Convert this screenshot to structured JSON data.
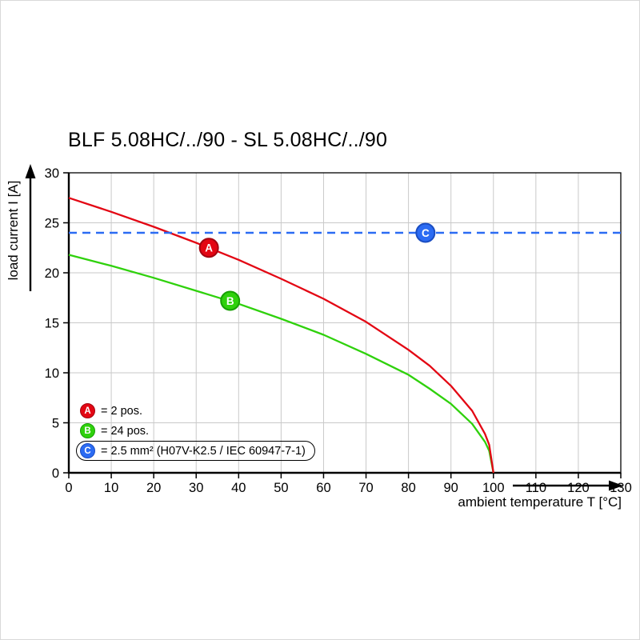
{
  "chart_data": {
    "type": "line",
    "title": "BLF 5.08HC/../90 - SL 5.08HC/../90",
    "xlabel": "ambient temperature T [°C]",
    "ylabel": "load current I [A]",
    "xlim": [
      0,
      130
    ],
    "ylim": [
      0,
      30
    ],
    "x_ticks": [
      0,
      10,
      20,
      30,
      40,
      50,
      60,
      70,
      80,
      90,
      100,
      110,
      120,
      130
    ],
    "y_ticks": [
      0,
      5,
      10,
      15,
      20,
      25,
      30
    ],
    "grid": true,
    "legend_position": "lower-left-inside",
    "series": [
      {
        "name": "B = 24 pos.",
        "color": "#2fd10c",
        "ring": "#17a004",
        "style": "solid",
        "points": [
          [
            0,
            21.8
          ],
          [
            10,
            20.7
          ],
          [
            20,
            19.5
          ],
          [
            30,
            18.2
          ],
          [
            40,
            16.9
          ],
          [
            50,
            15.4
          ],
          [
            60,
            13.8
          ],
          [
            70,
            11.9
          ],
          [
            80,
            9.8
          ],
          [
            85,
            8.4
          ],
          [
            90,
            6.9
          ],
          [
            95,
            4.9
          ],
          [
            98,
            3.1
          ],
          [
            99,
            2.2
          ],
          [
            100,
            0
          ]
        ]
      },
      {
        "name": "A = 2 pos.",
        "color": "#e30613",
        "ring": "#a30410",
        "style": "solid",
        "points": [
          [
            0,
            27.5
          ],
          [
            10,
            26.1
          ],
          [
            20,
            24.6
          ],
          [
            30,
            23.0
          ],
          [
            40,
            21.3
          ],
          [
            50,
            19.4
          ],
          [
            60,
            17.4
          ],
          [
            70,
            15.1
          ],
          [
            80,
            12.3
          ],
          [
            85,
            10.7
          ],
          [
            90,
            8.7
          ],
          [
            95,
            6.2
          ],
          [
            98,
            3.9
          ],
          [
            99,
            2.8
          ],
          [
            100,
            0
          ]
        ]
      },
      {
        "name": "C = 2.5 mm² (H07V-K2.5 / IEC 60947-7-1)",
        "color": "#2b6bf3",
        "ring": "#1a4dc2",
        "style": "dashed",
        "points": [
          [
            0,
            24
          ],
          [
            130,
            24
          ]
        ]
      }
    ],
    "markers": [
      {
        "letter": "A",
        "x": 33,
        "y": 22.5,
        "color": "#e30613",
        "ring": "#a30410"
      },
      {
        "letter": "B",
        "x": 38,
        "y": 17.2,
        "color": "#2fd10c",
        "ring": "#17a004"
      },
      {
        "letter": "C",
        "x": 84,
        "y": 24,
        "color": "#2b6bf3",
        "ring": "#1a4dc2"
      }
    ]
  },
  "legend": {
    "items": [
      {
        "letter": "A",
        "label": "= 2 pos.",
        "color": "#e30613",
        "ring": "#a30410",
        "boxed": false
      },
      {
        "letter": "B",
        "label": "= 24 pos.",
        "color": "#2fd10c",
        "ring": "#17a004",
        "boxed": false
      },
      {
        "letter": "C",
        "label": "= 2.5 mm² (H07V-K2.5 / IEC 60947-7-1)",
        "color": "#2b6bf3",
        "ring": "#1a4dc2",
        "boxed": true
      }
    ]
  }
}
